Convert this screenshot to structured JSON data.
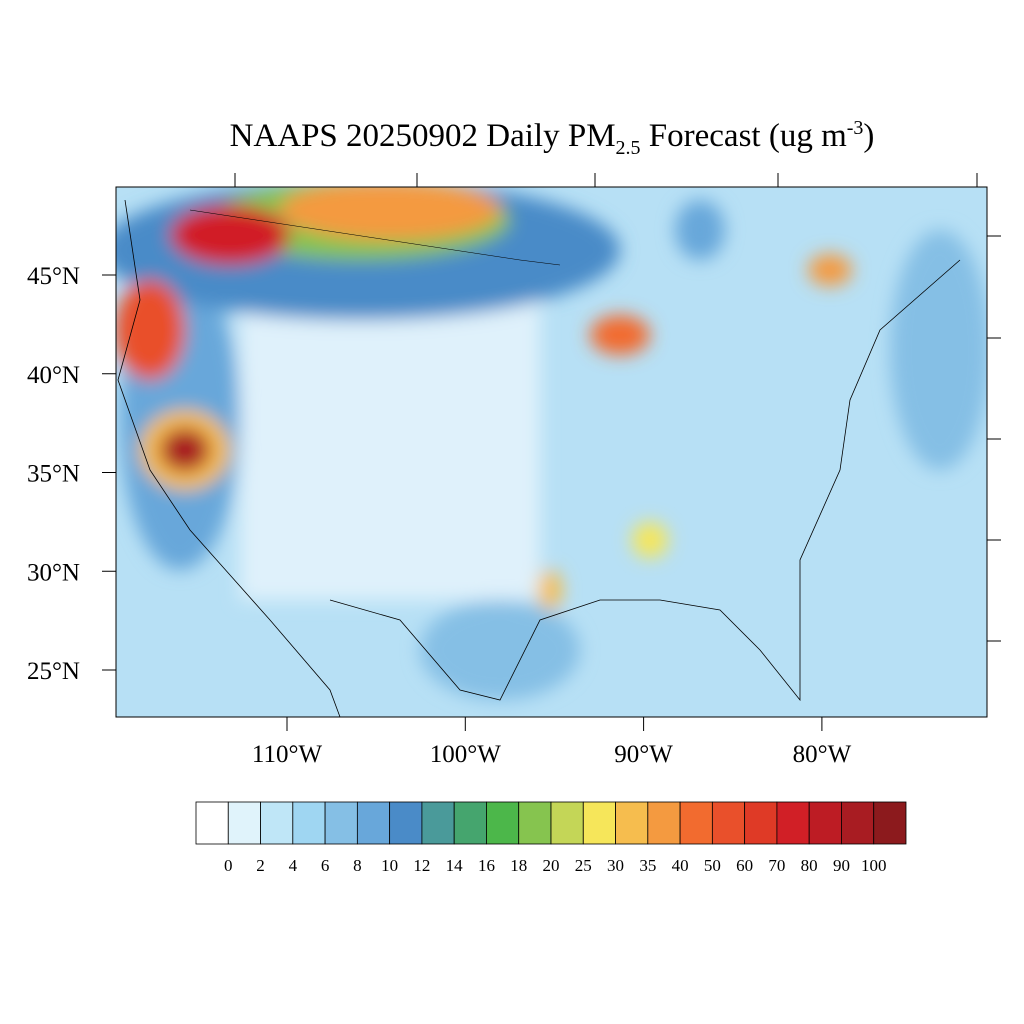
{
  "title": {
    "main": "NAAPS 20250902 Daily PM",
    "subscript": "2.5",
    "middle": " Forecast (ug m",
    "superscript": "-3",
    "end": ")"
  },
  "map": {
    "lat_ticks": [
      {
        "value": 45,
        "label": "45°N"
      },
      {
        "value": 40,
        "label": "40°N"
      },
      {
        "value": 35,
        "label": "35°N"
      },
      {
        "value": 30,
        "label": "30°N"
      },
      {
        "value": 25,
        "label": "25°N"
      }
    ],
    "lon_ticks": [
      {
        "value": -110,
        "label": "110°W"
      },
      {
        "value": -100,
        "label": "100°W"
      },
      {
        "value": -90,
        "label": "90°W"
      },
      {
        "value": -80,
        "label": "80°W"
      }
    ]
  },
  "colorbar": {
    "colors": [
      "#ffffff",
      "#e0f3fb",
      "#bfe6f7",
      "#9fd6f2",
      "#85bfe5",
      "#68a7da",
      "#4a8bc8",
      "#4a9a9a",
      "#45a56e",
      "#4cb74a",
      "#86c44f",
      "#c4d657",
      "#f6e65a",
      "#f6bd4e",
      "#f49a40",
      "#f26b2f",
      "#e9502b",
      "#df3a26",
      "#d11f26",
      "#bd1c24",
      "#a81c22",
      "#8c1a1d"
    ],
    "levels": [
      0,
      2,
      4,
      6,
      8,
      10,
      12,
      14,
      16,
      18,
      20,
      25,
      30,
      35,
      40,
      50,
      60,
      70,
      80,
      90,
      100
    ]
  }
}
